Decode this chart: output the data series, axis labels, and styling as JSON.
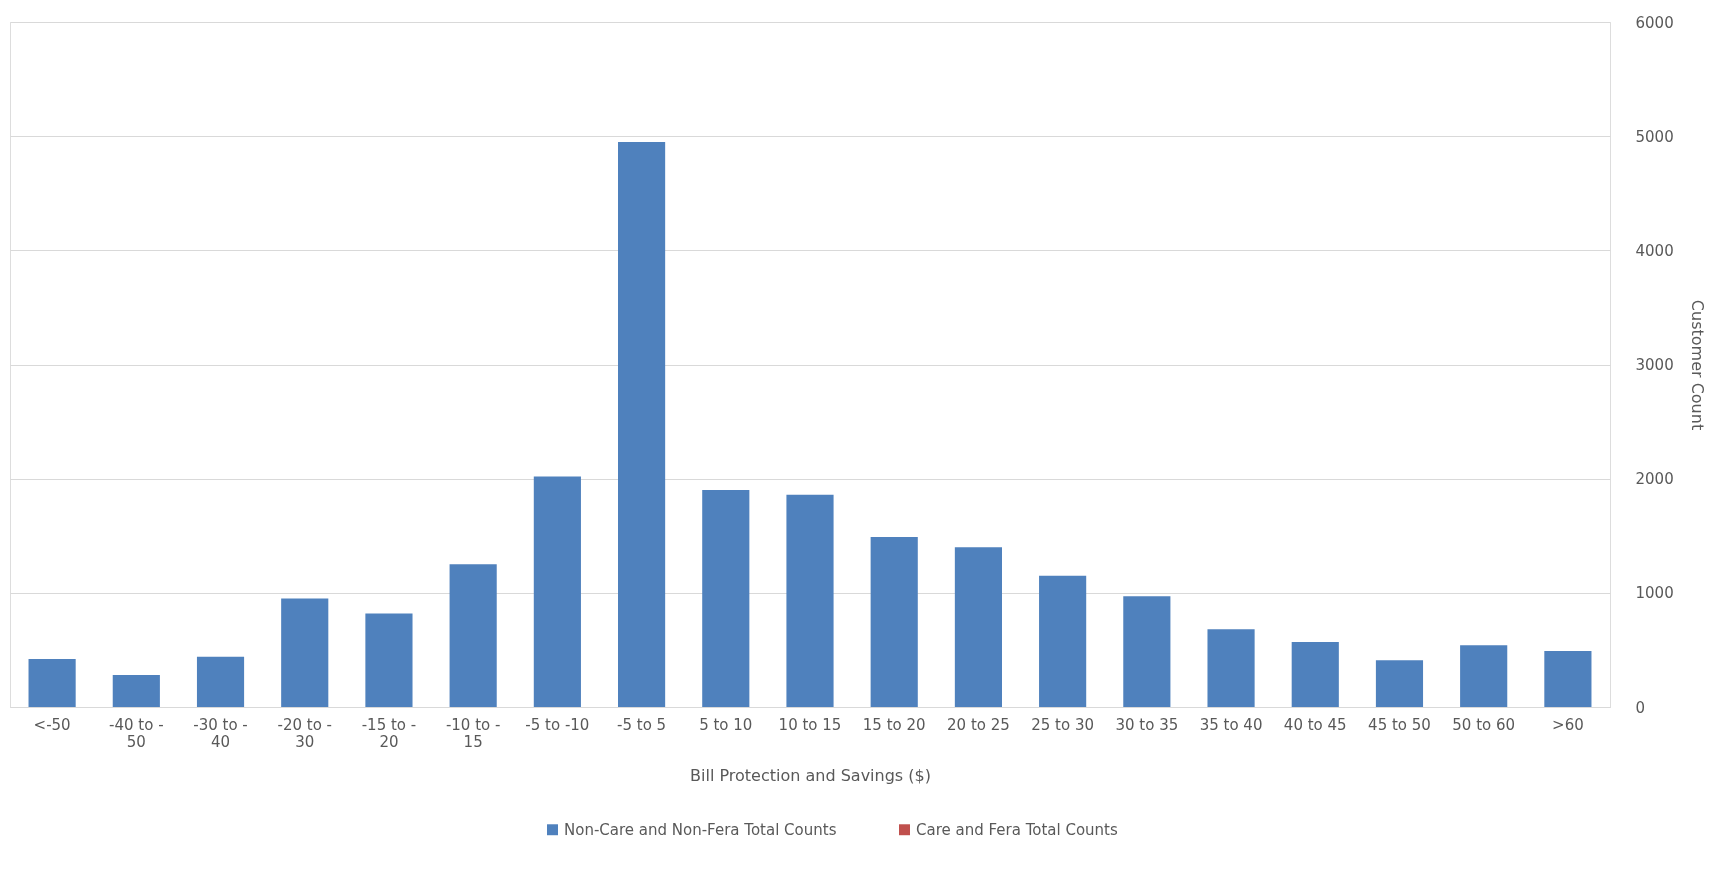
{
  "chart_data": {
    "type": "bar",
    "xlabel": "Bill Protection and Savings ($)",
    "ylabel": "Customer Count",
    "categories": [
      "<-50",
      "-40 to -50",
      "-30 to -40",
      "-20 to -30",
      "-15 to -20",
      "-10 to -15",
      "-5 to -10",
      "-5 to 5",
      "5 to 10",
      "10 to 15",
      "15 to 20",
      "20 to 25",
      "25 to 30",
      "30 to 35",
      "35 to 40",
      "40 to 45",
      "45 to 50",
      "50 to 60",
      ">60"
    ],
    "series": [
      {
        "name": "Non-Care and Non-Fera Total Counts",
        "color": "#4f81bd",
        "values": [
          420,
          280,
          440,
          950,
          820,
          1250,
          2020,
          4950,
          1900,
          1860,
          1490,
          1400,
          1150,
          970,
          680,
          570,
          410,
          540,
          490
        ]
      },
      {
        "name": "Care and Fera Total Counts",
        "color": "#c0504d",
        "values": [
          0,
          0,
          0,
          0,
          0,
          0,
          0,
          0,
          0,
          0,
          0,
          0,
          0,
          0,
          0,
          0,
          0,
          0,
          0
        ]
      }
    ],
    "ylim": [
      0,
      6000
    ],
    "yticks": [
      0,
      1000,
      2000,
      3000,
      4000,
      5000,
      6000
    ],
    "grid": "y",
    "legend": "bottom"
  }
}
